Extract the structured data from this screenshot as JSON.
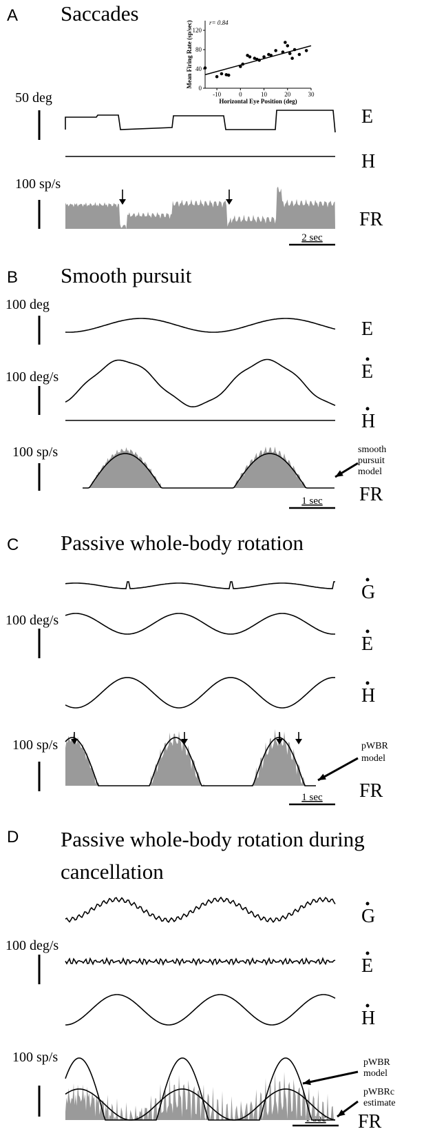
{
  "panels": [
    {
      "letter": "A",
      "title": [
        "Saccades"
      ],
      "scales": [
        "50 deg",
        "100 sp/s"
      ],
      "traces": [
        "E",
        "H",
        "FR"
      ],
      "time_scale": "2 sec"
    },
    {
      "letter": "B",
      "title": [
        "Smooth pursuit"
      ],
      "scales": [
        "100 deg",
        "100 deg/s",
        "100 sp/s"
      ],
      "traces": [
        "E",
        "E",
        "H",
        "FR"
      ],
      "annotations": [
        [
          "smooth",
          "pursuit",
          "model"
        ]
      ],
      "time_scale": "1 sec"
    },
    {
      "letter": "C",
      "title": [
        "Passive whole-body rotation"
      ],
      "scales": [
        "100 deg/s",
        "100 sp/s"
      ],
      "traces": [
        "G",
        "E",
        "H",
        "FR"
      ],
      "annotations": [
        [
          "pWBR",
          "model"
        ]
      ],
      "time_scale": "1 sec"
    },
    {
      "letter": "D",
      "title": [
        "Passive whole-body rotation during",
        "cancellation"
      ],
      "scales": [
        "100 deg/s",
        "100 sp/s"
      ],
      "traces": [
        "G",
        "E",
        "H",
        "FR"
      ],
      "annotations": [
        [
          "pWBR",
          "model"
        ],
        [
          "pWBRc",
          "estimate"
        ]
      ],
      "time_scale": "1 sec"
    }
  ],
  "inset": {
    "type": "scatter",
    "annotation": "r= 0.84",
    "x_label": "Horizontal Eye Position (deg)",
    "y_label": "Mean Firing Rate (sp/sec)",
    "xlim": [
      -15,
      30
    ],
    "xticks": [
      -10,
      0,
      10,
      20,
      30
    ],
    "ylim": [
      0,
      140
    ],
    "yticks": [
      0,
      40,
      80,
      120
    ],
    "x": [
      -15,
      -10,
      -8,
      -6,
      -5,
      0,
      1,
      3,
      4,
      6,
      7,
      8,
      10,
      12,
      13,
      15,
      18,
      19,
      20,
      21,
      22,
      23,
      25,
      28
    ],
    "y": [
      42,
      24,
      30,
      28,
      27,
      45,
      50,
      68,
      65,
      62,
      60,
      58,
      65,
      70,
      68,
      78,
      75,
      95,
      88,
      72,
      62,
      80,
      70,
      78
    ],
    "fit": {
      "x": [
        -15,
        30
      ],
      "y": [
        28,
        88
      ]
    }
  }
}
